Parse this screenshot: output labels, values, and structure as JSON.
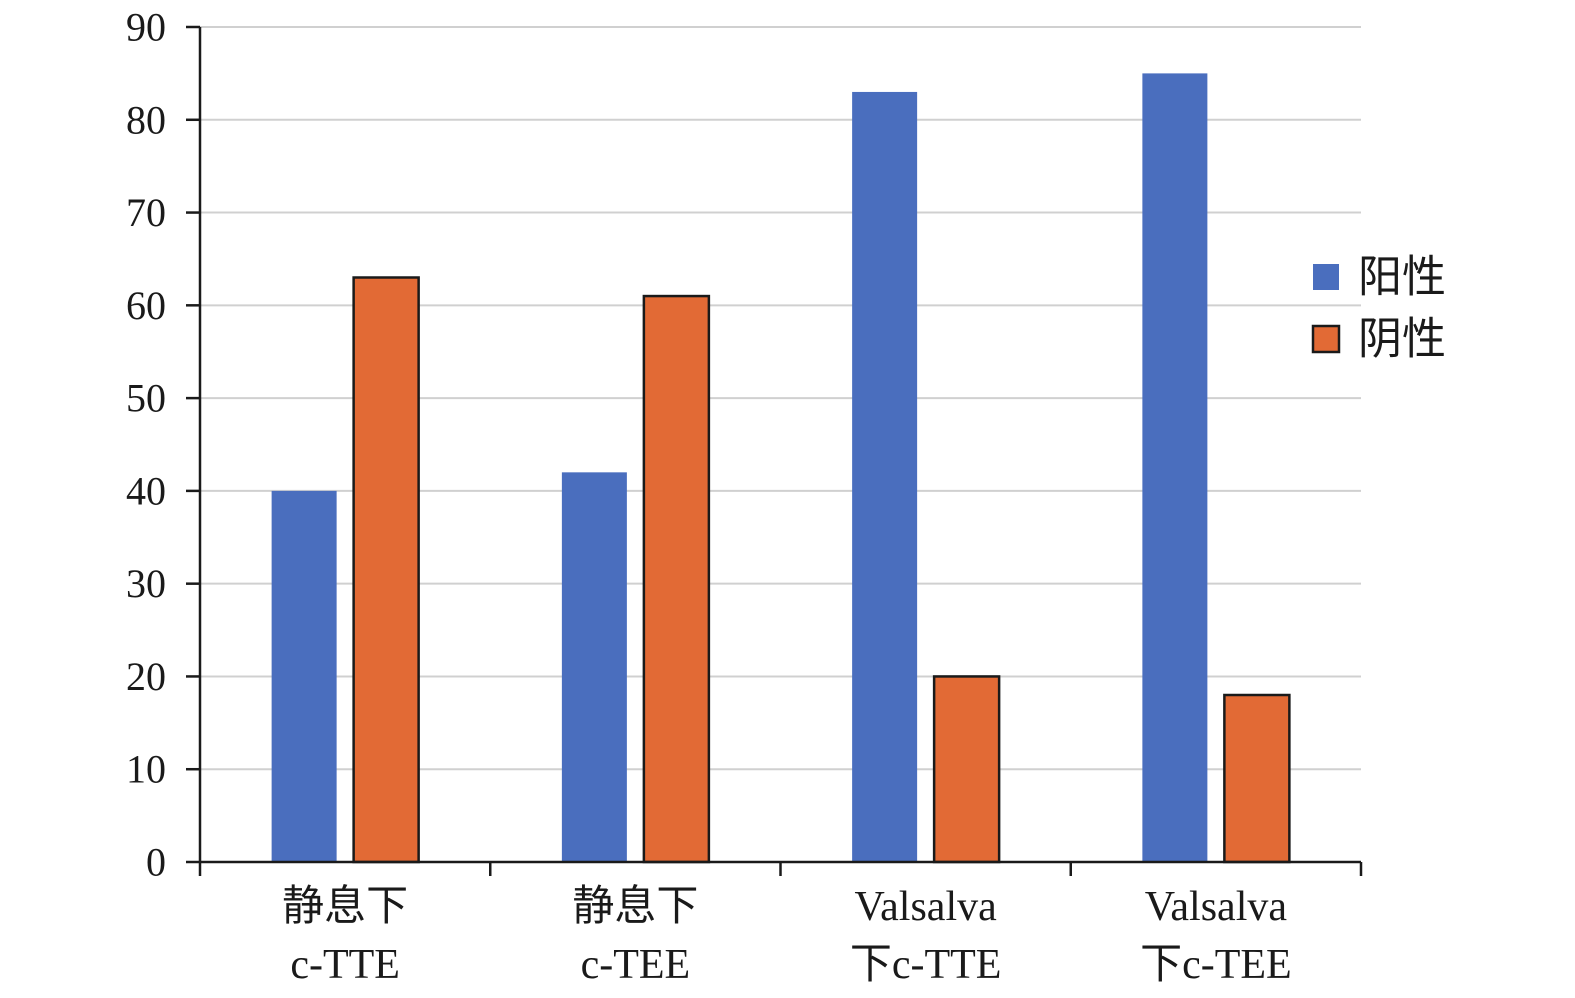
{
  "chart_data": {
    "type": "bar",
    "categories": [
      [
        "静息下",
        "c-TTE"
      ],
      [
        "静息下",
        "c-TEE"
      ],
      [
        "Valsalva",
        "下c-TTE"
      ],
      [
        "Valsalva",
        "下c-TEE"
      ]
    ],
    "series": [
      {
        "name": "阳性",
        "values": [
          40,
          42,
          83,
          85
        ],
        "color": "#4a6ebe",
        "outlined": false
      },
      {
        "name": "阴性",
        "values": [
          63,
          61,
          20,
          18
        ],
        "color": "#e26a35",
        "outlined": true
      }
    ],
    "ylim": [
      0,
      90
    ],
    "yticks": [
      0,
      10,
      20,
      30,
      40,
      50,
      60,
      70,
      80,
      90
    ],
    "grid": true,
    "legend_position": "right",
    "title": "",
    "xlabel": "",
    "ylabel": ""
  }
}
